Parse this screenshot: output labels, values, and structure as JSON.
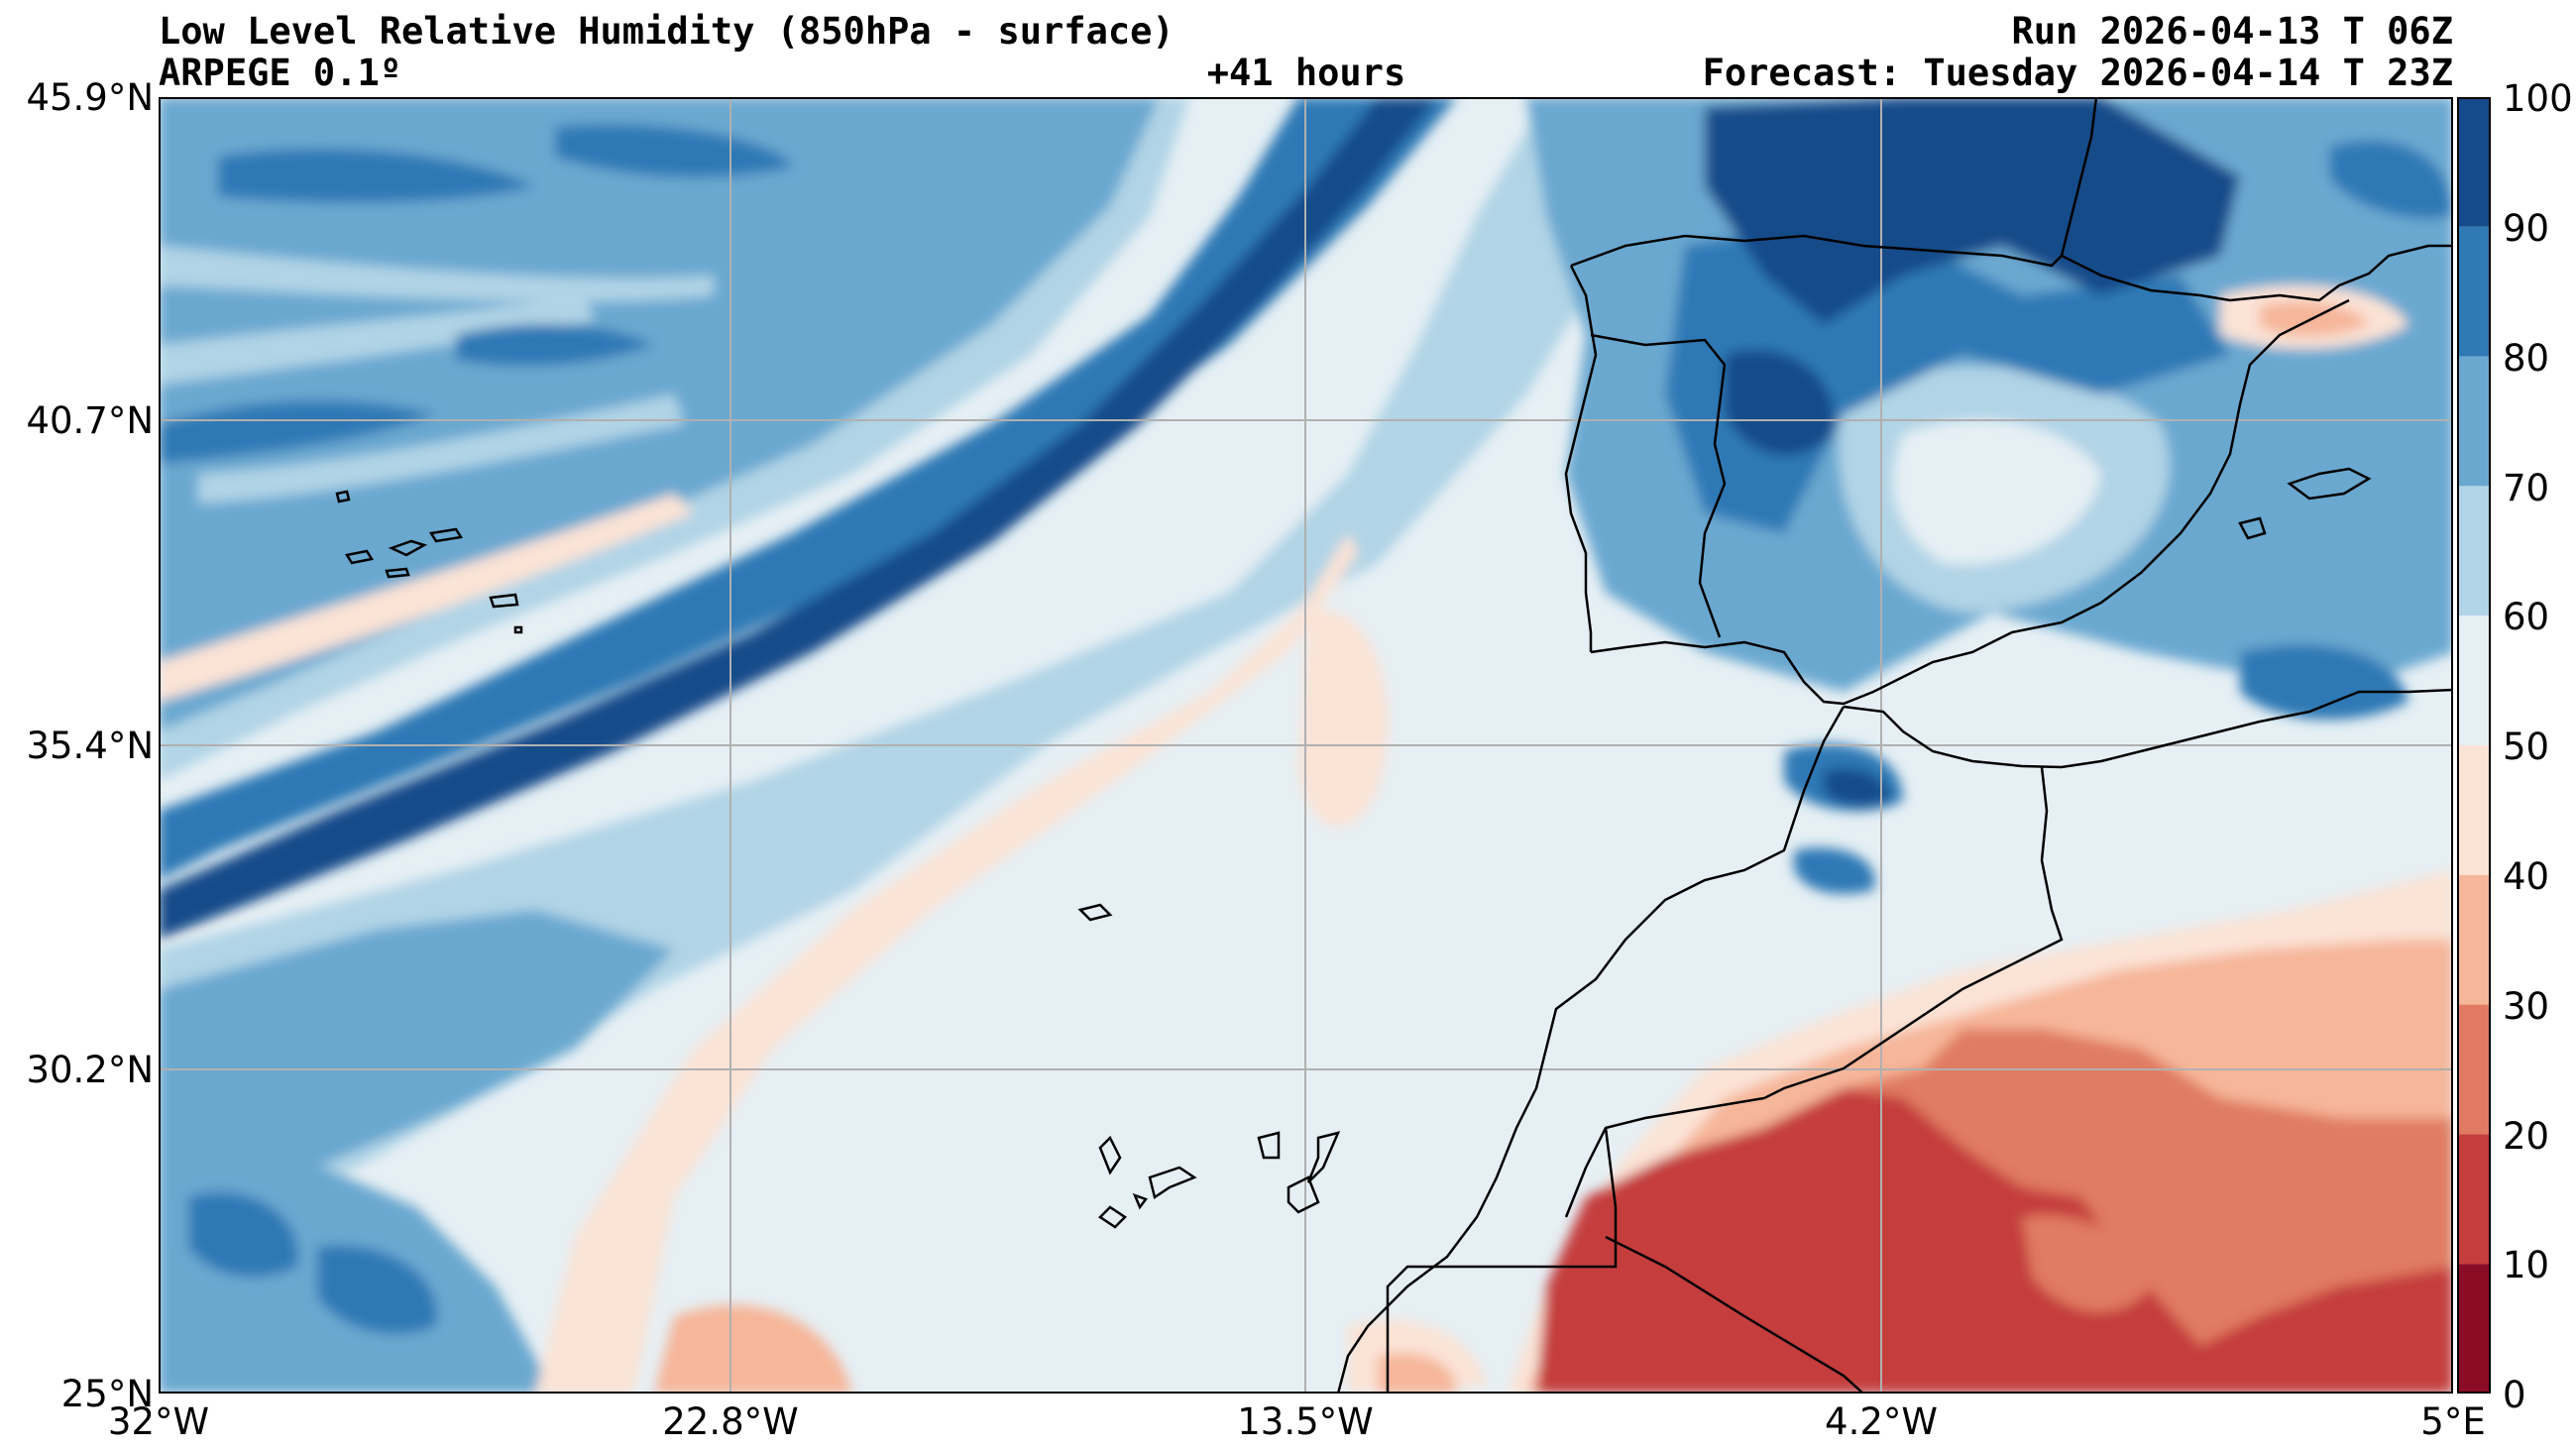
{
  "header": {
    "title": "Low Level Relative Humidity (850hPa - surface)",
    "model": "ARPEGE 0.1º",
    "lead": "+41 hours",
    "run": "Run 2026-04-13 T 06Z",
    "forecast": "Forecast: Tuesday 2026-04-14 T 23Z"
  },
  "axes": {
    "lat_labels": [
      "45.9°N",
      "40.7°N",
      "35.4°N",
      "30.2°N",
      "25°N"
    ],
    "lon_labels": [
      "32°W",
      "22.8°W",
      "13.5°W",
      "4.2°W",
      "5°E"
    ]
  },
  "colorbar": {
    "ticks": [
      "100",
      "90",
      "80",
      "70",
      "60",
      "50",
      "40",
      "30",
      "20",
      "10",
      "0"
    ],
    "colors": [
      "#053061",
      "#154b8a",
      "#2f79b5",
      "#6aa8d0",
      "#b1d4e6",
      "#e6eff4",
      "#fbe3d6",
      "#f6b69a",
      "#e07b62",
      "#c53e3d",
      "#8b0c25"
    ]
  },
  "map": {
    "variable": "relative humidity",
    "units": "%",
    "lon_range": [
      -32,
      5
    ],
    "lat_range": [
      25,
      45.9
    ],
    "gridlines": true
  }
}
